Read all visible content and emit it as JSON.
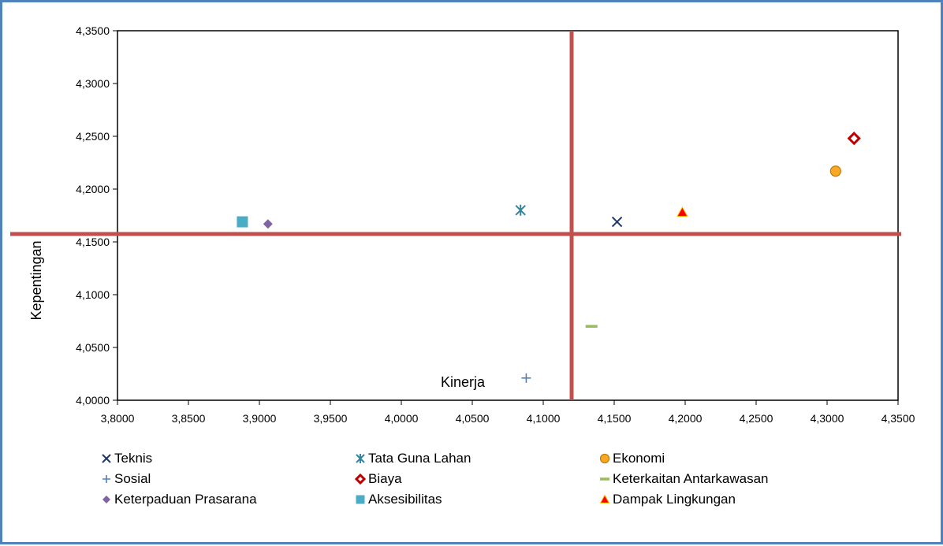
{
  "chart_data": {
    "type": "scatter",
    "title": "",
    "xlabel": "",
    "ylabel": "Kepentingan",
    "xlim": [
      3.8,
      4.35
    ],
    "ylim": [
      4.0,
      4.35
    ],
    "xticks": [
      "3,8000",
      "3,8500",
      "3,9000",
      "3,9500",
      "4,0000",
      "4,0500",
      "4,1000",
      "4,1500",
      "4,2000",
      "4,2500",
      "4,3000",
      "4,3500"
    ],
    "yticks": [
      "4,0000",
      "4,0500",
      "4,1000",
      "4,1500",
      "4,2000",
      "4,2500",
      "4,3000",
      "4,3500"
    ],
    "grid": false,
    "legend_position": "bottom",
    "series": [
      {
        "name": "Teknis",
        "marker": "x",
        "color": "#1f3864",
        "x": 4.152,
        "y": 4.169
      },
      {
        "name": "Tata Guna Lahan",
        "marker": "asterisk",
        "color": "#31859c",
        "x": 4.084,
        "y": 4.18
      },
      {
        "name": "Ekonomi",
        "marker": "circle",
        "color": "#f9a825",
        "x": 4.306,
        "y": 4.217
      },
      {
        "name": "Sosial",
        "marker": "plus",
        "color": "#4f81bd",
        "x": 4.088,
        "y": 4.021
      },
      {
        "name": "Biaya",
        "marker": "diamond-open",
        "color": "#c00000",
        "x": 4.319,
        "y": 4.248
      },
      {
        "name": "Keterkaitan Antarkawasan",
        "marker": "dash",
        "color": "#9bbb59",
        "x": 4.134,
        "y": 4.07
      },
      {
        "name": "Keterpaduan Prasarana",
        "marker": "diamond",
        "color": "#8064a2",
        "x": 3.906,
        "y": 4.167
      },
      {
        "name": "Aksesibilitas",
        "marker": "square",
        "color": "#4bacc6",
        "x": 3.888,
        "y": 4.169
      },
      {
        "name": "Dampak Lingkungan",
        "marker": "triangle",
        "color": "#ff0000",
        "x": 4.198,
        "y": 4.178
      }
    ],
    "reference_lines": {
      "vertical_x": 4.12,
      "horizontal_y": 4.1575,
      "color": "#c0504d",
      "vertical_label": "Kinerja"
    }
  }
}
